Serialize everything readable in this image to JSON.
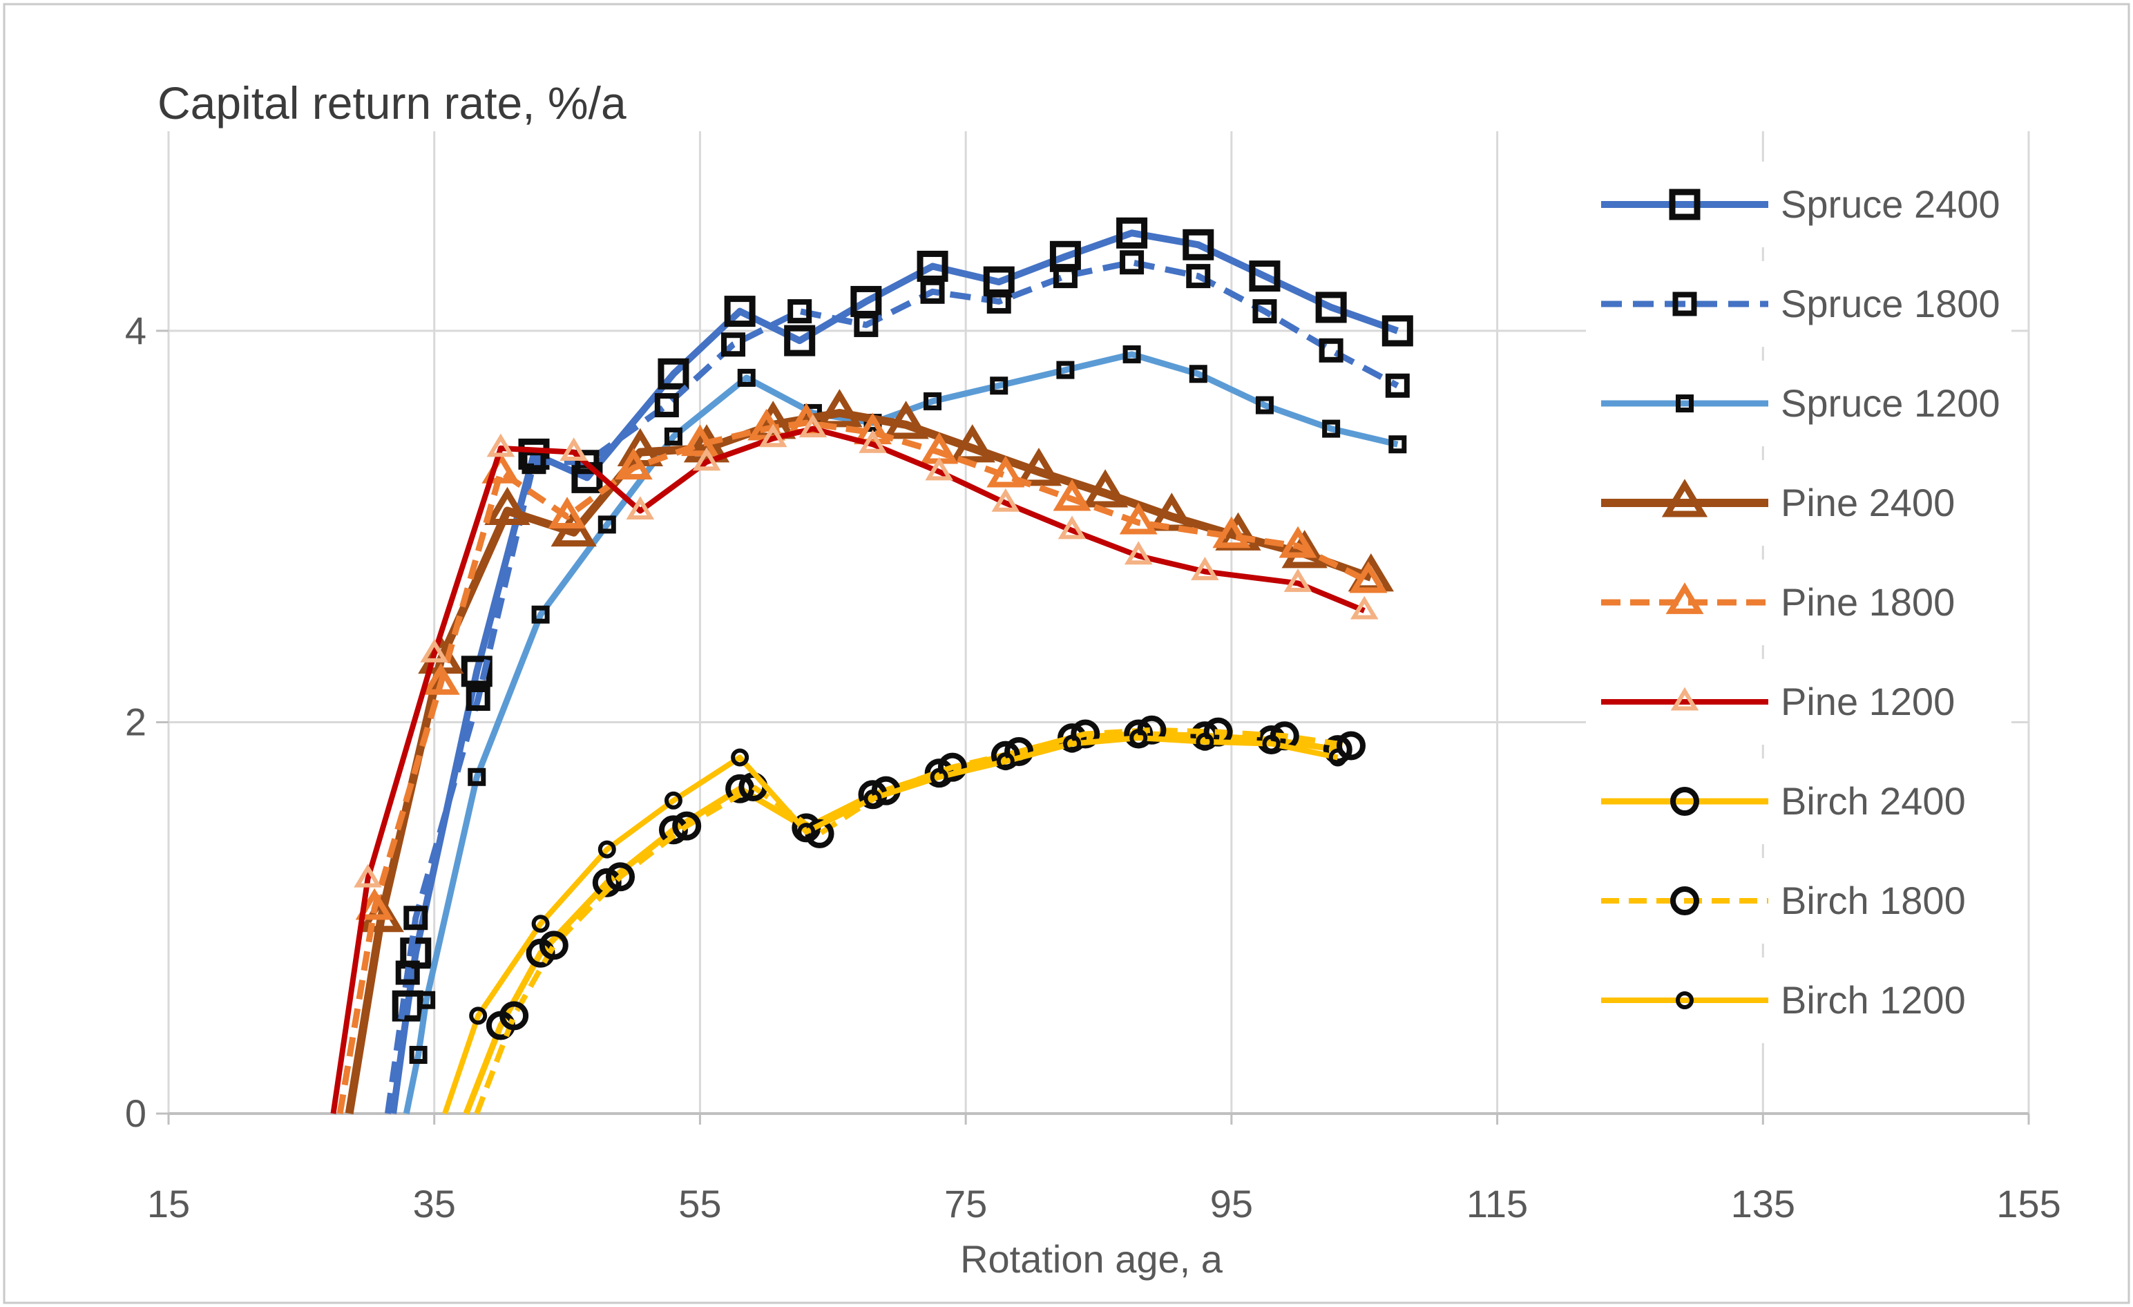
{
  "chart_data": {
    "type": "line",
    "title": "Capital return rate,  %/a",
    "xlabel": "Rotation age, a",
    "ylabel": "",
    "x_ticks": [
      15,
      35,
      55,
      75,
      95,
      115,
      135,
      155
    ],
    "y_ticks": [
      0,
      2,
      4
    ],
    "xlim": [
      15,
      155
    ],
    "ylim": [
      0,
      5.02
    ],
    "grid": true,
    "legend_position": "right",
    "colors": {
      "grid": "#D9D9D9",
      "axis": "#BFBFBF",
      "tick_text": "#595959",
      "title_text": "#3B3B3B",
      "legend_text": "#595959",
      "background": "#FFFFFF",
      "frame_border": "#C9C9C9",
      "marker_black": "#0D0D0D",
      "spruce_blue": "#4472C4",
      "spruce_light_blue": "#5B9BD5",
      "pine_dark_brown": "#9E4D16",
      "pine_orange": "#ED7D31",
      "pine_red": "#C00000",
      "pine_salmon": "#F4B183",
      "birch_gold": "#FFC000"
    },
    "series": [
      {
        "id": "spruce-2400",
        "name": "Spruce 2400",
        "line_color": "#4472C4",
        "line_width": 10,
        "dash": "",
        "marker": {
          "shape": "square",
          "size": 36,
          "stroke_width": 9,
          "color": "#0D0D0D"
        },
        "points": [
          [
            31.9,
            0,
            0
          ],
          [
            33,
            0.55
          ],
          [
            33.6,
            0.82
          ],
          [
            38.2,
            2.26
          ],
          [
            42.5,
            3.37
          ],
          [
            46.5,
            3.25
          ],
          [
            53,
            3.78
          ],
          [
            58,
            4.1
          ],
          [
            62.5,
            3.95
          ],
          [
            67.5,
            4.15
          ],
          [
            72.5,
            4.33
          ],
          [
            77.5,
            4.25
          ],
          [
            82.5,
            4.38
          ],
          [
            87.5,
            4.5
          ],
          [
            92.5,
            4.44
          ],
          [
            97.5,
            4.28
          ],
          [
            102.5,
            4.12
          ],
          [
            107.5,
            4.0
          ]
        ]
      },
      {
        "id": "spruce-1800",
        "name": "Spruce 1800",
        "line_color": "#4472C4",
        "line_width": 9,
        "dash": "30 16",
        "marker": {
          "shape": "square",
          "size": 27,
          "stroke_width": 8,
          "color": "#0D0D0D"
        },
        "points": [
          [
            31.5,
            0,
            0
          ],
          [
            33,
            0.72
          ],
          [
            33.6,
            1.0
          ],
          [
            38.3,
            2.12
          ],
          [
            42.5,
            3.33
          ],
          [
            46.5,
            3.33
          ],
          [
            52.5,
            3.62
          ],
          [
            57.5,
            3.93
          ],
          [
            62.5,
            4.1
          ],
          [
            67.5,
            4.03
          ],
          [
            72.5,
            4.2
          ],
          [
            77.5,
            4.15
          ],
          [
            82.5,
            4.28
          ],
          [
            87.5,
            4.35
          ],
          [
            92.5,
            4.28
          ],
          [
            97.5,
            4.1
          ],
          [
            102.5,
            3.9
          ],
          [
            107.5,
            3.72
          ]
        ]
      },
      {
        "id": "spruce-1200",
        "name": "Spruce 1200",
        "line_color": "#5B9BD5",
        "line_width": 9,
        "dash": "",
        "marker": {
          "shape": "square",
          "size": 19,
          "stroke_width": 7,
          "color": "#0D0D0D"
        },
        "points": [
          [
            32.9,
            0,
            0
          ],
          [
            33.8,
            0.3
          ],
          [
            34.4,
            0.58
          ],
          [
            38.2,
            1.72
          ],
          [
            43,
            2.55
          ],
          [
            48,
            3.01
          ],
          [
            53,
            3.46
          ],
          [
            58.5,
            3.76
          ],
          [
            63.5,
            3.58
          ],
          [
            68,
            3.53
          ],
          [
            72.5,
            3.64
          ],
          [
            77.5,
            3.72
          ],
          [
            82.5,
            3.8
          ],
          [
            87.5,
            3.88
          ],
          [
            92.5,
            3.78
          ],
          [
            97.5,
            3.62
          ],
          [
            102.5,
            3.5
          ],
          [
            107.5,
            3.42
          ]
        ]
      },
      {
        "id": "pine-2400",
        "name": "Pine 2400",
        "line_color": "#9E4D16",
        "line_width": 12,
        "dash": "",
        "marker": {
          "shape": "triangle",
          "size": 42,
          "stroke_width": 9,
          "color": "#9E4D16"
        },
        "points": [
          [
            28.6,
            0,
            0
          ],
          [
            31,
            1.0
          ],
          [
            35.5,
            2.32
          ],
          [
            40.5,
            3.08
          ],
          [
            45.5,
            2.97
          ],
          [
            50.5,
            3.38
          ],
          [
            55.5,
            3.4
          ],
          [
            60.5,
            3.52
          ],
          [
            65.5,
            3.58
          ],
          [
            70.5,
            3.52
          ],
          [
            75.5,
            3.4
          ],
          [
            80.5,
            3.28
          ],
          [
            85.5,
            3.17
          ],
          [
            90.5,
            3.05
          ],
          [
            95.5,
            2.95
          ],
          [
            100.5,
            2.86
          ],
          [
            105.5,
            2.74
          ]
        ]
      },
      {
        "id": "pine-1800",
        "name": "Pine 1800",
        "line_color": "#ED7D31",
        "line_width": 9,
        "dash": "28 14",
        "marker": {
          "shape": "triangle",
          "size": 34,
          "stroke_width": 8,
          "color": "#ED7D31"
        },
        "points": [
          [
            27.9,
            0,
            0
          ],
          [
            30.5,
            1.05
          ],
          [
            35.5,
            2.2
          ],
          [
            40,
            3.28
          ],
          [
            45,
            3.05
          ],
          [
            50,
            3.3
          ],
          [
            55,
            3.42
          ],
          [
            60,
            3.5
          ],
          [
            63,
            3.53
          ],
          [
            68,
            3.48
          ],
          [
            73,
            3.38
          ],
          [
            78,
            3.26
          ],
          [
            83,
            3.14
          ],
          [
            88,
            3.02
          ],
          [
            95,
            2.95
          ],
          [
            100,
            2.9
          ],
          [
            105.3,
            2.72
          ]
        ]
      },
      {
        "id": "pine-1200",
        "name": "Pine 1200",
        "line_color": "#C00000",
        "line_width": 8,
        "dash": "",
        "marker": {
          "shape": "triangle",
          "size": 25,
          "stroke_width": 6,
          "color": "#F4B183"
        },
        "points": [
          [
            27.4,
            0,
            0
          ],
          [
            30,
            1.2
          ],
          [
            35,
            2.35
          ],
          [
            40,
            3.4
          ],
          [
            45.5,
            3.38
          ],
          [
            50.5,
            3.08
          ],
          [
            55.5,
            3.33
          ],
          [
            60.5,
            3.45
          ],
          [
            63.5,
            3.5
          ],
          [
            68,
            3.42
          ],
          [
            73,
            3.28
          ],
          [
            78,
            3.12
          ],
          [
            83,
            2.98
          ],
          [
            88,
            2.85
          ],
          [
            93,
            2.77
          ],
          [
            100,
            2.71
          ],
          [
            105,
            2.57
          ]
        ]
      },
      {
        "id": "birch-2400",
        "name": "Birch 2400",
        "line_color": "#FFC000",
        "line_width": 9,
        "dash": "",
        "marker": {
          "shape": "circle",
          "size": 17,
          "stroke_width": 8,
          "color": "#0D0D0D"
        },
        "points": [
          [
            37.4,
            0,
            0
          ],
          [
            40,
            0.45
          ],
          [
            43,
            0.82
          ],
          [
            48,
            1.18
          ],
          [
            53,
            1.45
          ],
          [
            58,
            1.66
          ],
          [
            63,
            1.46
          ],
          [
            68,
            1.63
          ],
          [
            73,
            1.74
          ],
          [
            78,
            1.83
          ],
          [
            83,
            1.92
          ],
          [
            88,
            1.94
          ],
          [
            93,
            1.93
          ],
          [
            98,
            1.91
          ],
          [
            103,
            1.86
          ]
        ]
      },
      {
        "id": "birch-1800",
        "name": "Birch 1800",
        "line_color": "#FFC000",
        "line_width": 8,
        "dash": "26 14",
        "marker": {
          "shape": "circle",
          "size": 17,
          "stroke_width": 8,
          "color": "#0D0D0D"
        },
        "points": [
          [
            38.2,
            0,
            0
          ],
          [
            41,
            0.5
          ],
          [
            44,
            0.86
          ],
          [
            49,
            1.21
          ],
          [
            54,
            1.47
          ],
          [
            59,
            1.67
          ],
          [
            64,
            1.43
          ],
          [
            69,
            1.65
          ],
          [
            74,
            1.77
          ],
          [
            79,
            1.85
          ],
          [
            84,
            1.94
          ],
          [
            89,
            1.96
          ],
          [
            94,
            1.95
          ],
          [
            99,
            1.93
          ],
          [
            104,
            1.88
          ]
        ]
      },
      {
        "id": "birch-1200",
        "name": "Birch 1200",
        "line_color": "#FFC000",
        "line_width": 8,
        "dash": "",
        "marker": {
          "shape": "circle",
          "size": 10,
          "stroke_width": 6,
          "color": "#0D0D0D"
        },
        "points": [
          [
            35.8,
            0,
            0
          ],
          [
            38.3,
            0.5
          ],
          [
            43,
            0.97
          ],
          [
            48,
            1.35
          ],
          [
            53,
            1.6
          ],
          [
            58,
            1.82
          ],
          [
            63,
            1.44
          ],
          [
            68,
            1.61
          ],
          [
            73,
            1.72
          ],
          [
            78,
            1.8
          ],
          [
            83,
            1.89
          ],
          [
            88,
            1.92
          ],
          [
            93,
            1.9
          ],
          [
            98,
            1.89
          ],
          [
            103,
            1.82
          ]
        ]
      }
    ]
  }
}
